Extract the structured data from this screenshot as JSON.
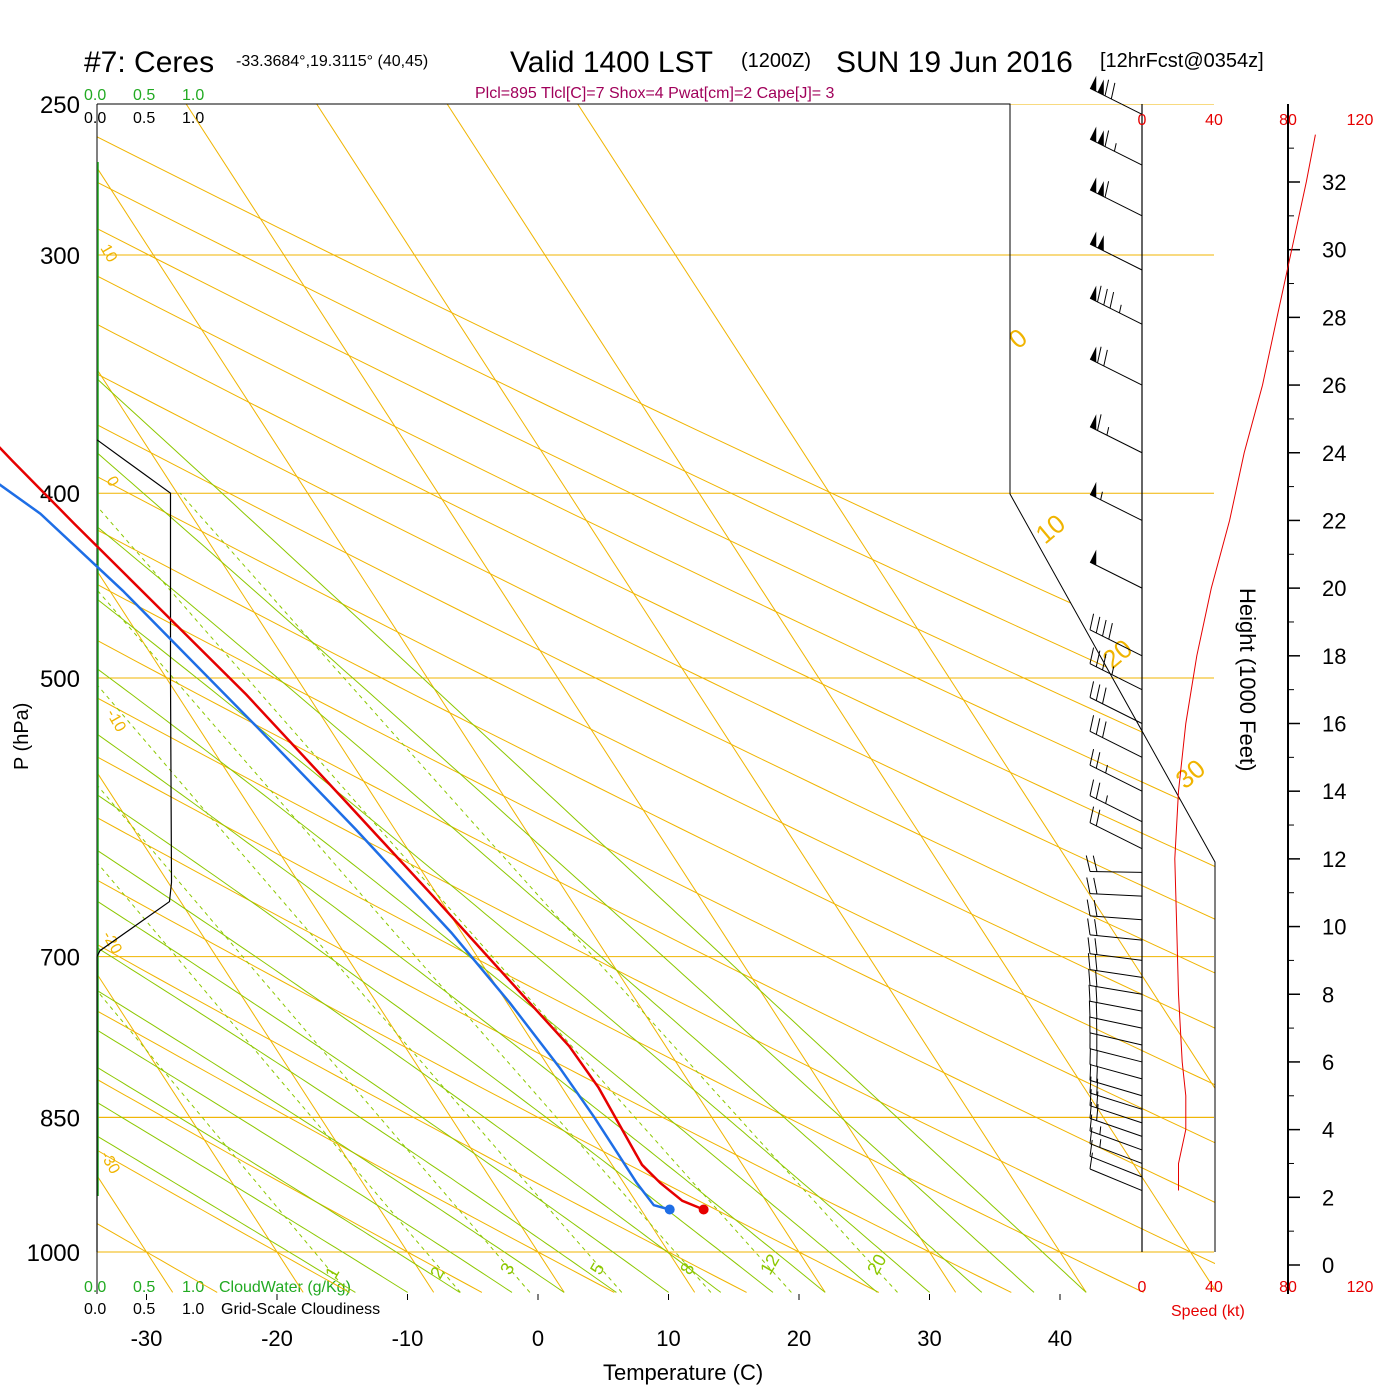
{
  "header": {
    "station": "#7: Ceres",
    "location": "-33.3684°,19.3115° (40,45)",
    "valid": "Valid 1400 LST",
    "zulu": "(1200Z)",
    "date": "SUN 19 Jun 2016",
    "forecast": "[12hrFcst@0354z]"
  },
  "indices": "Plcl=895 Tlcl[C]=7 Shox=4 Pwat[cm]=2 Cape[J]= 3",
  "colors": {
    "temperature": "#e60000",
    "dewpoint": "#1e6ee6",
    "isobar": "#f0b400",
    "dry_adiabat": "#f0b400",
    "moist_adiabat": "#8cc800",
    "mixing_ratio": "#8cc800",
    "cloud": "#22aa22",
    "wind": "#000000",
    "speed": "#e60000"
  },
  "legend": {
    "cloudwater_label": "CloudWater (g/Kg)",
    "cloudiness_label": "Grid-Scale Cloudiness",
    "scale_ticks": [
      "0.0",
      "0.5",
      "1.0"
    ]
  },
  "speed_axis": {
    "ticks": [
      "0",
      "40",
      "80",
      "120"
    ],
    "label": "Speed (kt)"
  },
  "chart_data": {
    "type": "line",
    "title": "#7: Ceres  Valid 1400 LST (1200Z) SUN 19 Jun 2016",
    "xlabel": "Temperature (C)",
    "ylabel": "P (hPa)",
    "y2label": "Height (1000 Feet)",
    "x_ticks": [
      -30,
      -20,
      -10,
      0,
      10,
      20,
      30,
      40
    ],
    "y_ticks": [
      250,
      300,
      400,
      500,
      700,
      850,
      1000
    ],
    "height_ticks": [
      0,
      2,
      4,
      6,
      8,
      10,
      12,
      14,
      16,
      18,
      20,
      22,
      24,
      26,
      28,
      30,
      32
    ],
    "xlim": [
      -34,
      36
    ],
    "ylim": [
      1050,
      250
    ],
    "y_scale": "log",
    "dry_adiabat_labels": [
      "10",
      "0",
      "-10",
      "-20",
      "-30",
      "0",
      "10",
      "20",
      "30"
    ],
    "mixing_ratio_labels": [
      "1",
      "2",
      "3",
      "5",
      "8",
      "12",
      "20"
    ],
    "series": [
      {
        "name": "Temperature",
        "points": [
          [
            14.8,
            950
          ],
          [
            13.6,
            940
          ],
          [
            12.8,
            920
          ],
          [
            12.3,
            900
          ],
          [
            12.6,
            850
          ],
          [
            12.8,
            820
          ],
          [
            12.6,
            780
          ],
          [
            11.5,
            730
          ],
          [
            9.6,
            650
          ],
          [
            7.6,
            580
          ],
          [
            5.3,
            510
          ],
          [
            2.7,
            455
          ],
          [
            0.6,
            415
          ],
          [
            -1.0,
            385
          ],
          [
            -2.6,
            355
          ],
          [
            -3.3,
            325
          ],
          [
            -3.8,
            300
          ],
          [
            -4.5,
            270
          ]
        ]
      },
      {
        "name": "Dewpoint",
        "points": [
          [
            12.2,
            950
          ],
          [
            11.2,
            945
          ],
          [
            11.0,
            920
          ],
          [
            11.0,
            850
          ],
          [
            10.8,
            800
          ],
          [
            10.2,
            740
          ],
          [
            9.2,
            680
          ],
          [
            7.0,
            600
          ],
          [
            4.5,
            530
          ],
          [
            1.0,
            450
          ],
          [
            -1.5,
            410
          ],
          [
            -4.5,
            385
          ],
          [
            -8.0,
            370
          ],
          [
            -15.0,
            352
          ],
          [
            -17.3,
            335
          ],
          [
            -15.0,
            318
          ],
          [
            -12.0,
            300
          ],
          [
            -11.5,
            285
          ],
          [
            -9.8,
            270
          ]
        ]
      }
    ],
    "cloud_fraction": [
      [
        0.0,
        1000
      ],
      [
        0.0,
        700
      ],
      [
        0.03,
        695
      ],
      [
        0.74,
        655
      ],
      [
        0.76,
        640
      ],
      [
        0.75,
        500
      ],
      [
        0.75,
        400
      ],
      [
        0.0,
        375
      ]
    ],
    "wind_speed_kt": [
      [
        20,
        2.2
      ],
      [
        20,
        3
      ],
      [
        24,
        4
      ],
      [
        24,
        5
      ],
      [
        22,
        6
      ],
      [
        20,
        8
      ],
      [
        19,
        10
      ],
      [
        18,
        12
      ],
      [
        20,
        14
      ],
      [
        24,
        16
      ],
      [
        30,
        18
      ],
      [
        38,
        20
      ],
      [
        48,
        22
      ],
      [
        56,
        24
      ],
      [
        66,
        26
      ],
      [
        74,
        28
      ],
      [
        82,
        30
      ],
      [
        90,
        32
      ],
      [
        95,
        33.4
      ]
    ],
    "wind_barbs": [
      {
        "h": 2.2,
        "spd": 10
      },
      {
        "h": 2.6,
        "spd": 10
      },
      {
        "h": 3.0,
        "spd": 15
      },
      {
        "h": 3.4,
        "spd": 15
      },
      {
        "h": 3.8,
        "spd": 20
      },
      {
        "h": 4.2,
        "spd": 20
      },
      {
        "h": 4.6,
        "spd": 20
      },
      {
        "h": 5.0,
        "spd": 20
      },
      {
        "h": 5.5,
        "spd": 20
      },
      {
        "h": 6.0,
        "spd": 20
      },
      {
        "h": 6.5,
        "spd": 20
      },
      {
        "h": 7.0,
        "spd": 20
      },
      {
        "h": 7.5,
        "spd": 20
      },
      {
        "h": 8.0,
        "spd": 20
      },
      {
        "h": 8.5,
        "spd": 20
      },
      {
        "h": 9.0,
        "spd": 20
      },
      {
        "h": 9.6,
        "spd": 20
      },
      {
        "h": 10.2,
        "spd": 20
      },
      {
        "h": 10.9,
        "spd": 20
      },
      {
        "h": 11.6,
        "spd": 20
      },
      {
        "h": 12.3,
        "spd": 20
      },
      {
        "h": 13.1,
        "spd": 25
      },
      {
        "h": 14.0,
        "spd": 25
      },
      {
        "h": 15.0,
        "spd": 30
      },
      {
        "h": 16.0,
        "spd": 30
      },
      {
        "h": 17.0,
        "spd": 35
      },
      {
        "h": 18.0,
        "spd": 40
      },
      {
        "h": 20.0,
        "spd": 50
      },
      {
        "h": 22.0,
        "spd": 55
      },
      {
        "h": 24.0,
        "spd": 65
      },
      {
        "h": 26.0,
        "spd": 70
      },
      {
        "h": 27.8,
        "spd": 85
      },
      {
        "h": 29.4,
        "spd": 100
      },
      {
        "h": 31.0,
        "spd": 110
      },
      {
        "h": 32.5,
        "spd": 115
      },
      {
        "h": 34.0,
        "spd": 120
      }
    ]
  }
}
